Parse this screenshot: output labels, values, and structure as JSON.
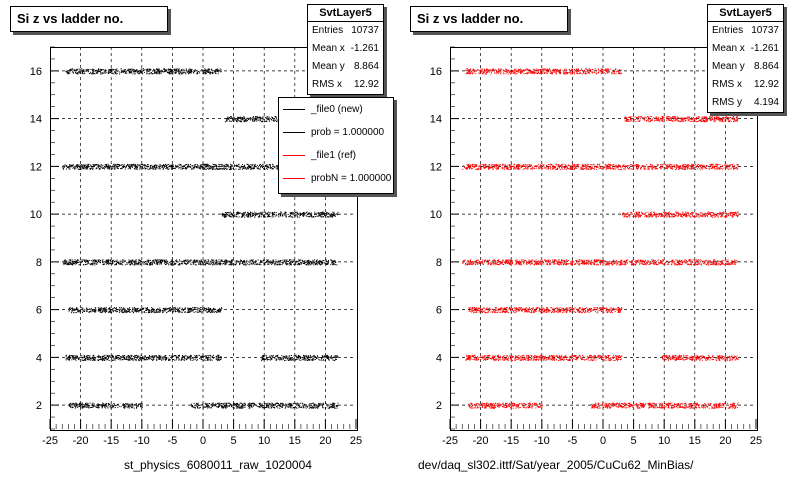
{
  "chart_data": [
    {
      "type": "scatter",
      "title": "Si z vs ladder no.",
      "xlim": [
        -25,
        25
      ],
      "ylim": [
        1,
        17
      ],
      "x_ticks": [
        -25,
        -20,
        -15,
        -10,
        -5,
        0,
        5,
        10,
        15,
        20,
        25
      ],
      "y_ticks": [
        2,
        4,
        6,
        8,
        10,
        12,
        14,
        16
      ],
      "grid": true,
      "caption": "st_physics_6080011_raw_1020004",
      "stats": {
        "name": "SvtLayer5",
        "rows": [
          {
            "label": "Entries",
            "value": "10737"
          },
          {
            "label": "Mean x",
            "value": "-1.261"
          },
          {
            "label": "Mean y",
            "value": "8.864"
          },
          {
            "label": "RMS x",
            "value": "12.92"
          }
        ]
      },
      "legend": {
        "placement": "top-right",
        "entries": [
          {
            "label": "_file0 (new)",
            "color": "#000000"
          },
          {
            "label": "prob = 1.000000",
            "color": "#000000"
          },
          {
            "label": "_file1 (ref)",
            "color": "#ff0000"
          },
          {
            "label": "probN = 1.000000",
            "color": "#ff0000"
          }
        ]
      },
      "color": "#000000",
      "bands": [
        {
          "y": 16,
          "x_ranges": [
            [
              -22.5,
              3
            ]
          ]
        },
        {
          "y": 14,
          "x_ranges": [
            [
              3.5,
              22
            ]
          ]
        },
        {
          "y": 12,
          "x_ranges": [
            [
              -23,
              22
            ]
          ]
        },
        {
          "y": 10,
          "x_ranges": [
            [
              3,
              22
            ]
          ]
        },
        {
          "y": 8,
          "x_ranges": [
            [
              -23,
              22
            ]
          ]
        },
        {
          "y": 6,
          "x_ranges": [
            [
              -22,
              3
            ]
          ]
        },
        {
          "y": 4,
          "x_ranges": [
            [
              -22.5,
              3
            ],
            [
              9.5,
              22
            ]
          ]
        },
        {
          "y": 2,
          "x_ranges": [
            [
              -22,
              -10
            ],
            [
              -2,
              22
            ]
          ]
        }
      ]
    },
    {
      "type": "scatter",
      "title": "Si z vs ladder no.",
      "xlim": [
        -25,
        25
      ],
      "ylim": [
        1,
        17
      ],
      "x_ticks": [
        -25,
        -20,
        -15,
        -10,
        -5,
        0,
        5,
        10,
        15,
        20,
        25
      ],
      "y_ticks": [
        2,
        4,
        6,
        8,
        10,
        12,
        14,
        16
      ],
      "grid": true,
      "caption": "dev/daq_sl302.ittf/Sat/year_2005/CuCu62_MinBias/",
      "stats": {
        "name": "SvtLayer5",
        "rows": [
          {
            "label": "Entries",
            "value": "10737"
          },
          {
            "label": "Mean x",
            "value": "-1.261"
          },
          {
            "label": "Mean y",
            "value": "8.864"
          },
          {
            "label": "RMS x",
            "value": "12.92"
          },
          {
            "label": "RMS y",
            "value": "4.194"
          }
        ]
      },
      "color": "#ff0000",
      "bands": [
        {
          "y": 16,
          "x_ranges": [
            [
              -22.5,
              3
            ]
          ]
        },
        {
          "y": 14,
          "x_ranges": [
            [
              3.5,
              22
            ]
          ]
        },
        {
          "y": 12,
          "x_ranges": [
            [
              -23,
              22
            ]
          ]
        },
        {
          "y": 10,
          "x_ranges": [
            [
              3,
              22
            ]
          ]
        },
        {
          "y": 8,
          "x_ranges": [
            [
              -23,
              22
            ]
          ]
        },
        {
          "y": 6,
          "x_ranges": [
            [
              -22,
              3
            ]
          ]
        },
        {
          "y": 4,
          "x_ranges": [
            [
              -22.5,
              3
            ],
            [
              9.5,
              22
            ]
          ]
        },
        {
          "y": 2,
          "x_ranges": [
            [
              -22,
              -10
            ],
            [
              -2,
              22
            ]
          ]
        }
      ]
    }
  ]
}
